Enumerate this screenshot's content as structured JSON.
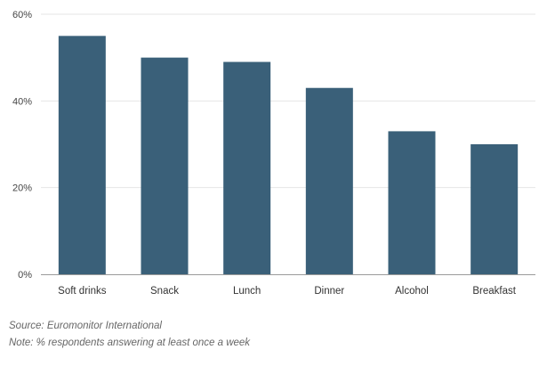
{
  "chart_data": {
    "type": "bar",
    "categories": [
      "Soft drinks",
      "Snack",
      "Lunch",
      "Dinner",
      "Alcohol",
      "Breakfast"
    ],
    "values": [
      55,
      50,
      49,
      43,
      33,
      30
    ],
    "yticks": [
      "0%",
      "20%",
      "40%",
      "60%"
    ],
    "ylim": [
      0,
      60
    ],
    "grid": true,
    "bar_color": "#3a6079",
    "title": "",
    "xlabel": "",
    "ylabel": ""
  },
  "notes": {
    "source": "Source: Euromonitor International",
    "note": "Note: % respondents answering at least once a week"
  }
}
